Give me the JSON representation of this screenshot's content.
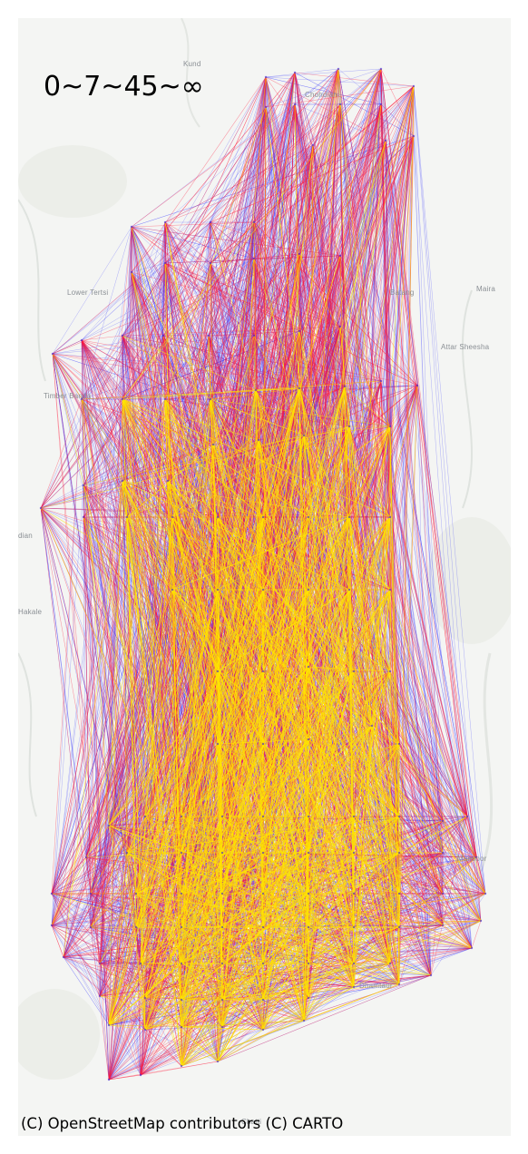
{
  "legend": {
    "title": "0~7~45~∞"
  },
  "attribution": "(C) OpenStreetMap contributors (C) CARTO",
  "colors": {
    "background": "#f4f5f3",
    "low": "#2a2aff",
    "mid": "#ff1a3c",
    "high": "#ffe600"
  },
  "place_labels": [
    {
      "name": "Kund"
    },
    {
      "name": "Chohdian"
    },
    {
      "name": "Lower Tertsi"
    },
    {
      "name": "Batang"
    },
    {
      "name": "Maira"
    },
    {
      "name": "Attar Sheesha"
    },
    {
      "name": "Timber Banda"
    },
    {
      "name": "dian"
    },
    {
      "name": "Hakale"
    },
    {
      "name": "Mansoor"
    },
    {
      "name": "Dhamtaur"
    },
    {
      "name": "Chatti"
    }
  ]
}
